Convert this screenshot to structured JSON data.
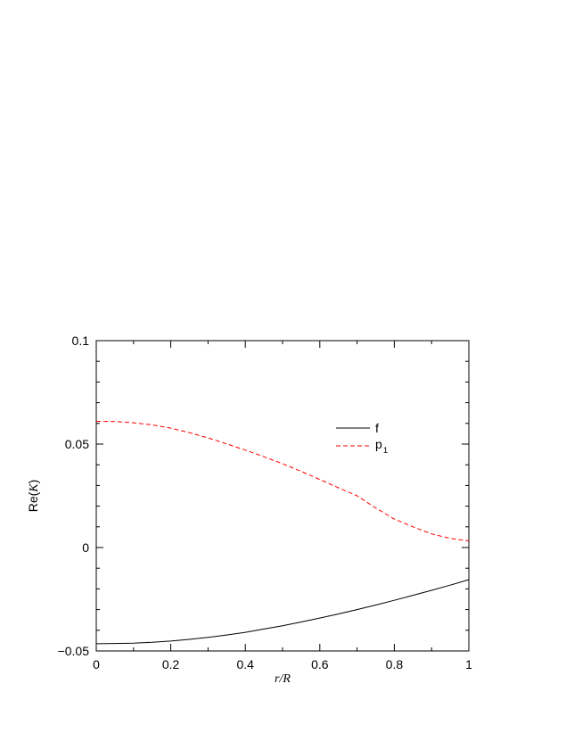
{
  "chart_data": {
    "type": "line",
    "xlabel": "r/R",
    "ylabel_prefix": "Re(",
    "ylabel_var": "K",
    "ylabel_suffix": ")",
    "xlim": [
      0,
      1
    ],
    "ylim": [
      -0.05,
      0.1
    ],
    "grid": false,
    "legend_position": "top-right",
    "x_ticks": [
      0,
      0.2,
      0.4,
      0.6,
      0.8,
      1
    ],
    "x_tick_labels": [
      "0",
      "0.2",
      "0.4",
      "0.6",
      "0.8",
      "1"
    ],
    "y_ticks": [
      -0.05,
      0,
      0.05,
      0.1
    ],
    "y_tick_labels": [
      "−0.05",
      "0",
      "0.05",
      "0.1"
    ],
    "x": [
      0,
      0.05,
      0.1,
      0.15,
      0.2,
      0.25,
      0.3,
      0.35,
      0.4,
      0.45,
      0.5,
      0.55,
      0.6,
      0.65,
      0.7,
      0.75,
      0.8,
      0.85,
      0.9,
      0.95,
      1.0
    ],
    "series": [
      {
        "name": "f",
        "color": "#000000",
        "dash": "solid",
        "values": [
          -0.0465,
          -0.0464,
          -0.0462,
          -0.0458,
          -0.0452,
          -0.0444,
          -0.0434,
          -0.0423,
          -0.041,
          -0.0394,
          -0.0378,
          -0.036,
          -0.0341,
          -0.0321,
          -0.03,
          -0.0278,
          -0.0255,
          -0.0231,
          -0.0207,
          -0.0182,
          -0.0155
        ]
      },
      {
        "name": "p",
        "name_sub": "1",
        "color": "#ff0000",
        "dash": "dashed",
        "values": [
          0.061,
          0.0609,
          0.0603,
          0.0593,
          0.0577,
          0.0555,
          0.053,
          0.0501,
          0.0471,
          0.0439,
          0.0405,
          0.0368,
          0.0329,
          0.0289,
          0.025,
          0.0191,
          0.0138,
          0.01,
          0.0066,
          0.0044,
          0.0032
        ]
      }
    ]
  }
}
